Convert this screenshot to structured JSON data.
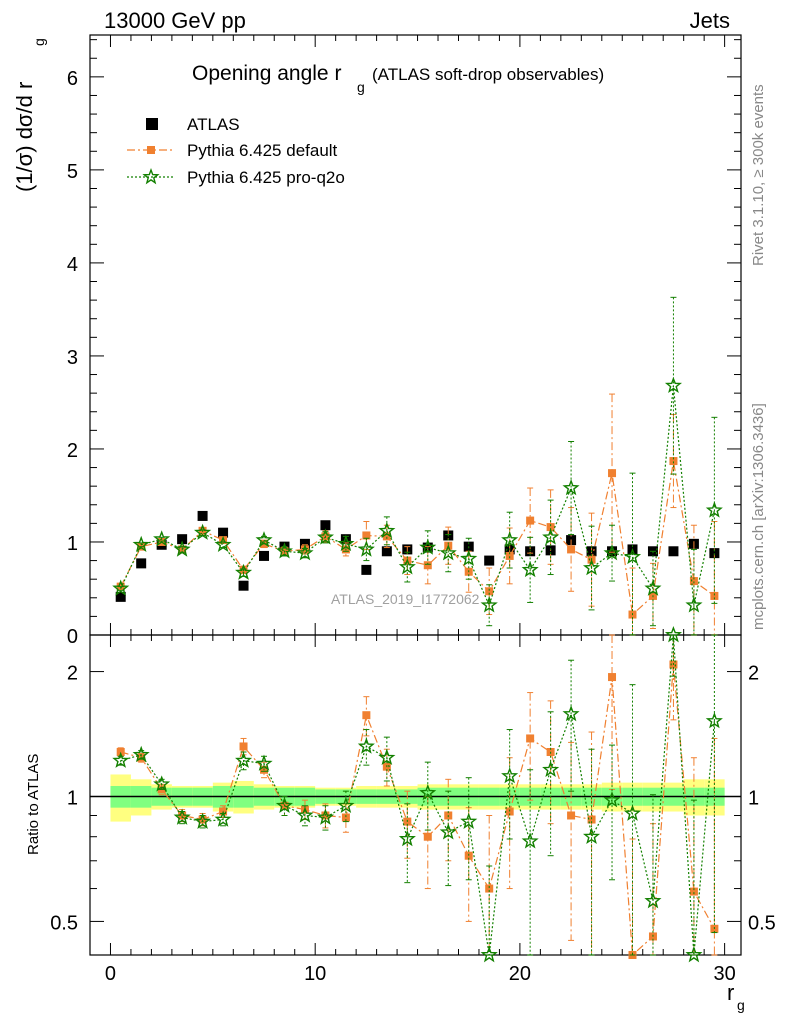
{
  "header": {
    "left": "13000 GeV pp",
    "right": "Jets"
  },
  "title": {
    "main": "Opening angle r",
    "sub": "g",
    "extra": "(ATLAS soft-drop observables)"
  },
  "ylabel_top": "(1/σ) dσ/d r",
  "ylabel_top_sub": "g",
  "ylabel_bottom": "Ratio to ATLAS",
  "xlabel": "r",
  "xlabel_sub": "g",
  "watermark": "ATLAS_2019_I1772062",
  "side_text_1": "Rivet 3.1.10, ≥ 300k events",
  "side_text_2": "mcplots.cern.ch [arXiv:1306.3436]",
  "legend": [
    {
      "label": "ATLAS",
      "color": "#000000",
      "marker": "square"
    },
    {
      "label": "Pythia 6.425 default",
      "color": "#f08030",
      "marker": "square"
    },
    {
      "label": "Pythia 6.425 pro-q2o",
      "color": "#138000",
      "marker": "star"
    }
  ],
  "chart_data": {
    "type": "scatter",
    "x": [
      0.5,
      1.5,
      2.5,
      3.5,
      4.5,
      5.5,
      6.5,
      7.5,
      8.5,
      9.5,
      10.5,
      11.5,
      12.5,
      13.5,
      14.5,
      15.5,
      16.5,
      17.5,
      18.5,
      19.5,
      20.5,
      21.5,
      22.5,
      23.5,
      24.5,
      25.5,
      26.5,
      27.5,
      28.5,
      29.5
    ],
    "xlim": [
      -1,
      30.8
    ],
    "top": {
      "ylim": [
        0,
        6.45
      ],
      "yticks": [
        0,
        1,
        2,
        3,
        4,
        5,
        6
      ],
      "series": [
        {
          "name": "ATLAS",
          "color": "#000000",
          "marker": "square",
          "values": [
            0.41,
            0.77,
            0.97,
            1.03,
            1.28,
            1.1,
            0.53,
            0.85,
            0.95,
            0.98,
            1.18,
            1.03,
            0.7,
            0.9,
            0.92,
            0.94,
            1.07,
            0.95,
            0.8,
            0.92,
            0.9,
            0.91,
            1.02,
            0.9,
            0.9,
            0.92,
            0.9,
            0.9,
            0.98,
            0.88
          ],
          "err": [
            0.02,
            0.02,
            0.02,
            0.02,
            0.02,
            0.02,
            0.02,
            0.02,
            0.02,
            0.02,
            0.02,
            0.02,
            0.02,
            0.02,
            0.02,
            0.03,
            0.03,
            0.03,
            0.03,
            0.03,
            0.03,
            0.03,
            0.03,
            0.03,
            0.03,
            0.03,
            0.03,
            0.03,
            0.03,
            0.03
          ]
        },
        {
          "name": "Pythia 6.425 default",
          "color": "#f08030",
          "marker": "square",
          "values": [
            0.52,
            0.95,
            1.0,
            0.92,
            1.12,
            1.02,
            0.7,
            0.98,
            0.9,
            0.92,
            1.06,
            0.92,
            1.07,
            1.06,
            0.8,
            0.75,
            0.96,
            0.68,
            0.47,
            0.85,
            1.23,
            1.16,
            0.92,
            0.81,
            1.74,
            0.22,
            0.42,
            1.87,
            0.58,
            0.42
          ],
          "err": [
            0.02,
            0.02,
            0.02,
            0.03,
            0.03,
            0.03,
            0.04,
            0.04,
            0.05,
            0.05,
            0.06,
            0.07,
            0.15,
            0.12,
            0.15,
            0.2,
            0.2,
            0.22,
            0.25,
            0.3,
            0.35,
            0.4,
            0.45,
            0.5,
            0.85,
            0.5,
            0.35,
            0.5,
            0.6,
            0.8
          ]
        },
        {
          "name": "Pythia 6.425 pro-q2o",
          "color": "#138000",
          "marker": "star",
          "values": [
            0.5,
            0.97,
            1.03,
            0.92,
            1.1,
            0.97,
            0.67,
            1.02,
            0.9,
            0.88,
            1.05,
            0.98,
            0.92,
            1.12,
            0.73,
            0.94,
            0.88,
            0.82,
            0.32,
            1.02,
            0.7,
            1.05,
            1.58,
            0.72,
            0.88,
            0.84,
            0.5,
            2.68,
            0.32,
            1.34
          ],
          "err": [
            0.02,
            0.02,
            0.02,
            0.03,
            0.03,
            0.03,
            0.04,
            0.04,
            0.05,
            0.05,
            0.06,
            0.08,
            0.12,
            0.15,
            0.16,
            0.18,
            0.2,
            0.22,
            0.22,
            0.3,
            0.35,
            0.4,
            0.5,
            0.45,
            0.3,
            0.9,
            0.4,
            0.95,
            0.6,
            1.0
          ]
        }
      ]
    },
    "bottom": {
      "ylim": [
        0.415,
        2.45
      ],
      "yticks": [
        0.5,
        1,
        2
      ],
      "log": true,
      "reference": 1,
      "band_inner": [
        0.06,
        0.06,
        0.05,
        0.05,
        0.05,
        0.06,
        0.06,
        0.05,
        0.05,
        0.05,
        0.04,
        0.04,
        0.04,
        0.04,
        0.04,
        0.05,
        0.05,
        0.05,
        0.05,
        0.05,
        0.05,
        0.05,
        0.05,
        0.05,
        0.05,
        0.05,
        0.05,
        0.05,
        0.05,
        0.05
      ],
      "band_outer": [
        0.13,
        0.1,
        0.07,
        0.06,
        0.06,
        0.08,
        0.09,
        0.07,
        0.06,
        0.06,
        0.05,
        0.05,
        0.06,
        0.06,
        0.06,
        0.07,
        0.07,
        0.07,
        0.07,
        0.07,
        0.07,
        0.07,
        0.07,
        0.07,
        0.08,
        0.08,
        0.08,
        0.08,
        0.1,
        0.1
      ],
      "series": [
        {
          "name": "Pythia 6.425 default",
          "color": "#f08030",
          "marker": "square",
          "values": [
            1.28,
            1.24,
            1.04,
            0.9,
            0.88,
            0.92,
            1.32,
            1.16,
            0.95,
            0.93,
            0.9,
            0.89,
            1.57,
            1.18,
            0.87,
            0.8,
            0.9,
            0.72,
            0.6,
            0.92,
            1.38,
            1.28,
            0.9,
            0.88,
            1.94,
            0.24,
            0.46,
            2.08,
            0.59,
            0.48
          ],
          "err": [
            0.03,
            0.03,
            0.03,
            0.03,
            0.03,
            0.03,
            0.06,
            0.05,
            0.05,
            0.05,
            0.06,
            0.07,
            0.17,
            0.12,
            0.16,
            0.2,
            0.2,
            0.22,
            0.3,
            0.32,
            0.4,
            0.42,
            0.45,
            0.55,
            0.9,
            0.55,
            0.4,
            0.55,
            0.65,
            0.9
          ]
        },
        {
          "name": "Pythia 6.425 pro-q2o",
          "color": "#138000",
          "marker": "star",
          "values": [
            1.22,
            1.26,
            1.07,
            0.89,
            0.87,
            0.88,
            1.22,
            1.2,
            0.95,
            0.9,
            0.89,
            0.95,
            1.32,
            1.24,
            0.79,
            1.02,
            0.82,
            0.87,
            0.4,
            1.12,
            0.78,
            1.16,
            1.58,
            0.8,
            0.98,
            0.91,
            0.56,
            2.95,
            0.33,
            1.52
          ],
          "err": [
            0.03,
            0.03,
            0.03,
            0.03,
            0.03,
            0.03,
            0.06,
            0.05,
            0.05,
            0.05,
            0.06,
            0.08,
            0.13,
            0.15,
            0.17,
            0.19,
            0.21,
            0.24,
            0.28,
            0.33,
            0.38,
            0.44,
            0.55,
            0.5,
            0.35,
            0.95,
            0.45,
            1.0,
            0.65,
            1.05
          ]
        }
      ]
    },
    "xticks": [
      0,
      10,
      20,
      30
    ]
  }
}
